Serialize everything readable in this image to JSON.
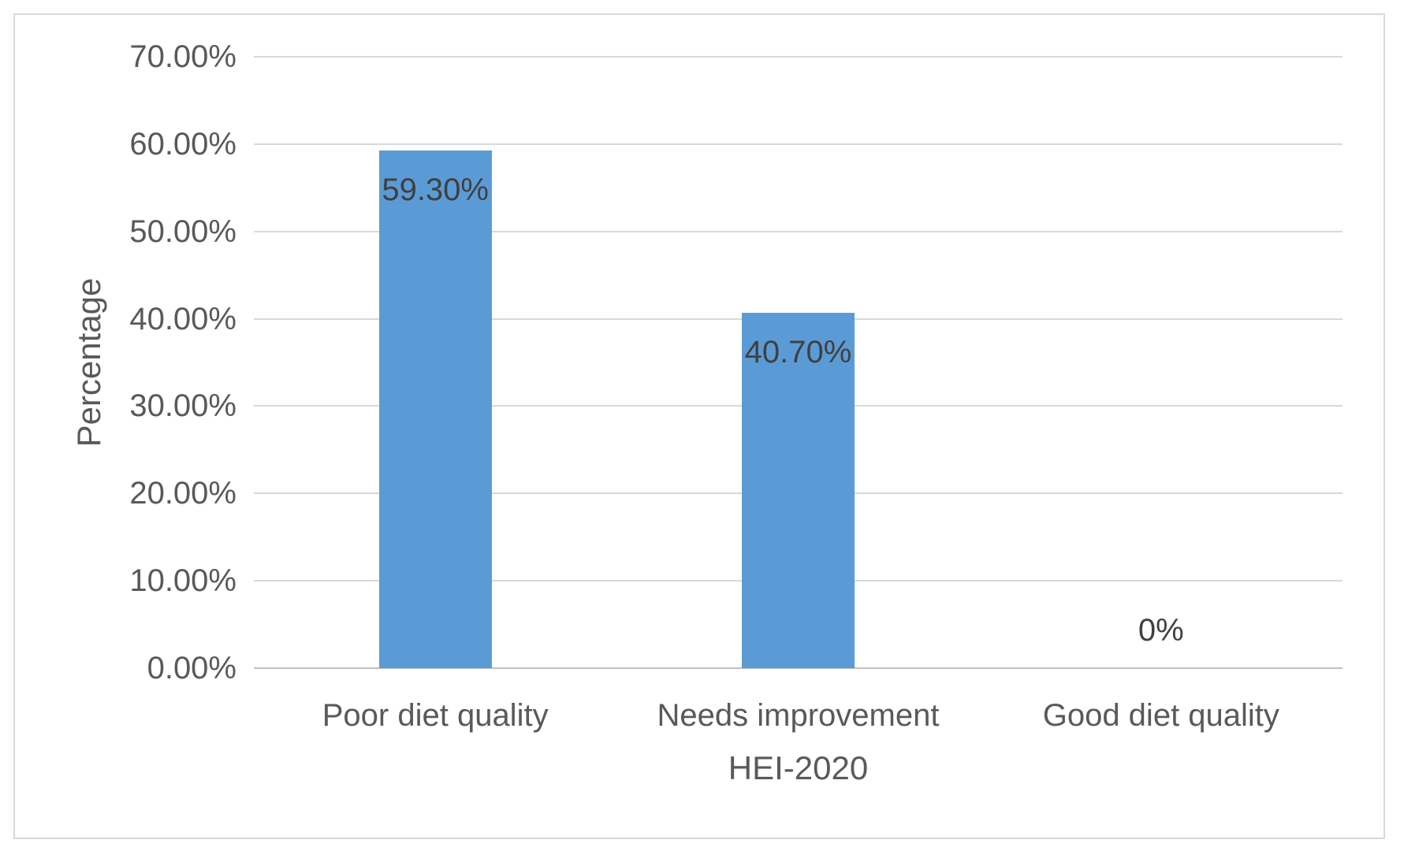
{
  "chart_data": {
    "type": "bar",
    "categories": [
      "Poor diet quality",
      "Needs improvement",
      "Good diet quality"
    ],
    "values": [
      59.3,
      40.7,
      0
    ],
    "value_labels": [
      "59.30%",
      "40.70%",
      "0%"
    ],
    "xlabel": "HEI-2020",
    "ylabel": "Percentage",
    "ylim": [
      0,
      70
    ],
    "ytick_labels": [
      "0.00%",
      "10.00%",
      "20.00%",
      "30.00%",
      "40.00%",
      "50.00%",
      "60.00%",
      "70.00%"
    ],
    "grid": true,
    "legend": "none",
    "bar_color": "#5b9bd5",
    "data_label_color": "#404040",
    "axis_text_color": "#595959",
    "gridline_color": "#d9d9d9",
    "axis_line_color": "#bfbfbf",
    "frame_border_color": "#d9d9d9",
    "background": "#ffffff"
  }
}
